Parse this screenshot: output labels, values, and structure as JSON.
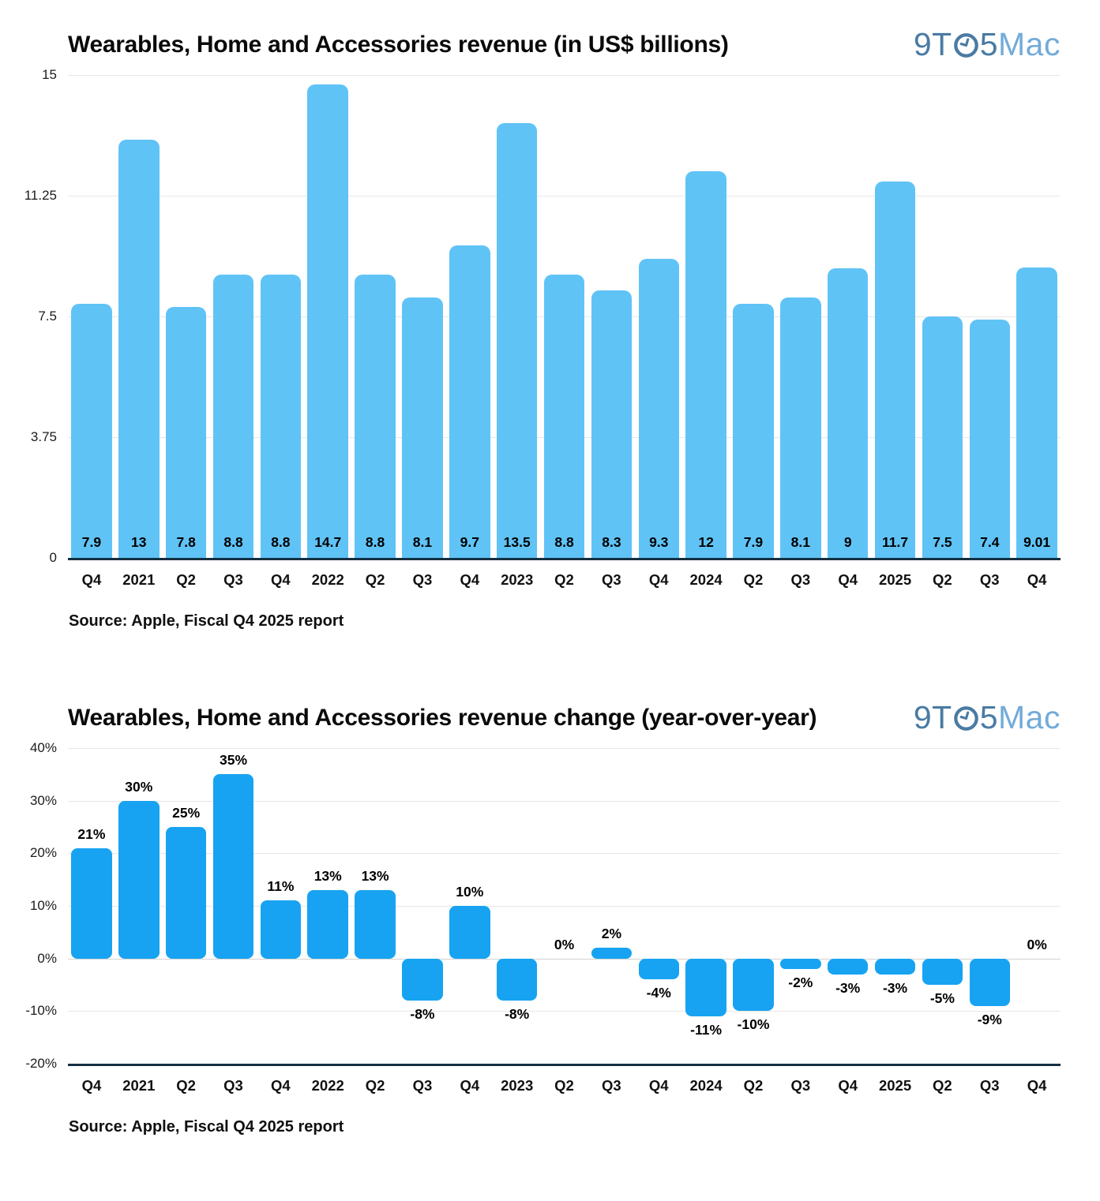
{
  "logo": {
    "part1": "9T",
    "part2": "5",
    "part3": "Mac"
  },
  "chart_data": [
    {
      "type": "bar",
      "title": "Wearables, Home and Accessories revenue (in US$ billions)",
      "categories": [
        "Q4",
        "2021",
        "Q2",
        "Q3",
        "Q4",
        "2022",
        "Q2",
        "Q3",
        "Q4",
        "2023",
        "Q2",
        "Q3",
        "Q4",
        "2024",
        "Q2",
        "Q3",
        "Q4",
        "2025",
        "Q2",
        "Q3",
        "Q4"
      ],
      "values": [
        7.9,
        13,
        7.8,
        8.8,
        8.8,
        14.7,
        8.8,
        8.1,
        9.7,
        13.5,
        8.8,
        8.3,
        9.3,
        12,
        7.9,
        8.1,
        9,
        11.7,
        7.5,
        7.4,
        9.01
      ],
      "value_labels": [
        "7.9",
        "13",
        "7.8",
        "8.8",
        "8.8",
        "14.7",
        "8.8",
        "8.1",
        "9.7",
        "13.5",
        "8.8",
        "8.3",
        "9.3",
        "12",
        "7.9",
        "8.1",
        "9",
        "11.7",
        "7.5",
        "7.4",
        "9.01"
      ],
      "xlabel": "",
      "ylabel": "",
      "ylim": [
        0,
        15
      ],
      "yticks": [
        0,
        3.75,
        7.5,
        11.25,
        15
      ],
      "ytick_labels": [
        "0",
        "3.75",
        "7.5",
        "11.25",
        "15"
      ],
      "bar_color": "#60c3f6",
      "bar_style": "column",
      "grid": true,
      "legend": "none",
      "source": "Source: Apple, Fiscal Q4 2025 report"
    },
    {
      "type": "bar",
      "title": "Wearables, Home and Accessories revenue change (year-over-year)",
      "categories": [
        "Q4",
        "2021",
        "Q2",
        "Q3",
        "Q4",
        "2022",
        "Q2",
        "Q3",
        "Q4",
        "2023",
        "Q2",
        "Q3",
        "Q4",
        "2024",
        "Q2",
        "Q3",
        "Q4",
        "2025",
        "Q2",
        "Q3",
        "Q4"
      ],
      "values": [
        21,
        30,
        25,
        35,
        11,
        13,
        13,
        -8,
        10,
        -8,
        0,
        2,
        -4,
        -11,
        -10,
        -2,
        -3,
        -3,
        -5,
        -9,
        0
      ],
      "value_labels": [
        "21%",
        "30%",
        "25%",
        "35%",
        "11%",
        "13%",
        "13%",
        "-8%",
        "10%",
        "-8%",
        "0%",
        "2%",
        "-4%",
        "-11%",
        "-10%",
        "-2%",
        "-3%",
        "-3%",
        "-5%",
        "-9%",
        "0%"
      ],
      "xlabel": "",
      "ylabel": "",
      "ylim": [
        -20,
        40
      ],
      "yticks": [
        -20,
        -10,
        0,
        10,
        20,
        30,
        40
      ],
      "ytick_labels": [
        "-20%",
        "-10%",
        "0%",
        "10%",
        "20%",
        "30%",
        "40%"
      ],
      "bar_color": "#17a3f1",
      "bar_style": "diverging",
      "grid": true,
      "legend": "none",
      "source": "Source: Apple, Fiscal Q4 2025 report"
    }
  ]
}
